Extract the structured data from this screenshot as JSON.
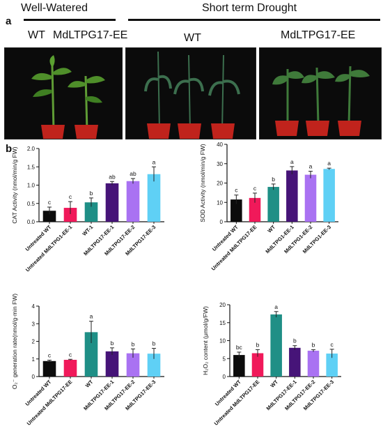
{
  "panel_a": {
    "letter": "a",
    "header_left": "Well-Watered",
    "header_right": "Short term Drought",
    "photo1_labels": [
      "WT",
      "MdLTPG17-EE"
    ],
    "photo2_label": "WT",
    "photo3_label": "MdLTPG17-EE"
  },
  "panel_b": {
    "letter": "b"
  },
  "colors": [
    "#0c0c0c",
    "#f0195a",
    "#1f8f86",
    "#461478",
    "#a972f2",
    "#5fd0f5"
  ],
  "chart_data": [
    {
      "type": "bar",
      "ylabel": "CAT Activity (nmol/min/g FW)",
      "ylim": [
        0,
        2.0
      ],
      "yticks": [
        "0.0",
        "0.5",
        "1.0",
        "1.5",
        "2.0"
      ],
      "categories": [
        "Untreated WT",
        "Untreated MdLTPG1-EE-1",
        "WT-1",
        "MdLTPG17-EE-1",
        "MdLTPG17-EE-2",
        "MdLTPG17-EE-3"
      ],
      "values": [
        0.3,
        0.38,
        0.53,
        1.05,
        1.11,
        1.3
      ],
      "errors": [
        0.1,
        0.17,
        0.12,
        0.05,
        0.07,
        0.2
      ],
      "letters": [
        "c",
        "c",
        "b",
        "ab",
        "ab",
        "a"
      ]
    },
    {
      "type": "bar",
      "ylabel": "SOD Activity (nmol/min/g FW)",
      "ylim": [
        0,
        40
      ],
      "yticks": [
        "0",
        "10",
        "20",
        "30",
        "40"
      ],
      "categories": [
        "Untreated WT",
        "Untreated MdLTPG17-EE",
        "WT",
        "MdLTPG1-EE-1",
        "MdLTPG1-EE-2",
        "MdLTPG1-EE-3"
      ],
      "values": [
        11.5,
        12.3,
        18.0,
        26.5,
        24.3,
        27.3
      ],
      "errors": [
        2.3,
        2.5,
        1.5,
        2.0,
        1.8,
        0.4
      ],
      "letters": [
        "c",
        "c",
        "b",
        "a",
        "a",
        "a"
      ]
    },
    {
      "type": "bar",
      "ylabel": "O₂⁻ generation rate(nmol/g·min FW)",
      "ylim": [
        0,
        4
      ],
      "yticks": [
        "0",
        "1",
        "2",
        "3",
        "4"
      ],
      "categories": [
        "Untreated WT",
        "Untreated MdLTPG17-EE",
        "WT",
        "MdLTPG17-EE-1",
        "MdLTPG17-EE-2",
        "MdLTPG17-EE-3"
      ],
      "values": [
        0.88,
        0.95,
        2.52,
        1.43,
        1.32,
        1.3
      ],
      "errors": [
        0.05,
        0.03,
        0.62,
        0.2,
        0.25,
        0.3
      ],
      "letters": [
        "c",
        "c",
        "a",
        "b",
        "b",
        "b"
      ]
    },
    {
      "type": "bar",
      "ylabel": "H₂O₂ content (μmol/g/FW)",
      "ylim": [
        0,
        20
      ],
      "yticks": [
        "0",
        "5",
        "10",
        "15",
        "20"
      ],
      "categories": [
        "Untreated WT",
        "Untreated MdLTPG17-EE",
        "WT",
        "MdLTPG17-EE-1",
        "MdLTPG17-EE-2",
        "MdLTPG17-EE-3"
      ],
      "values": [
        6.0,
        6.5,
        17.3,
        8.0,
        7.2,
        6.4
      ],
      "errors": [
        0.8,
        1.0,
        0.8,
        0.6,
        0.3,
        1.2
      ],
      "letters": [
        "bc",
        "b",
        "a",
        "b",
        "b",
        "c"
      ]
    }
  ]
}
